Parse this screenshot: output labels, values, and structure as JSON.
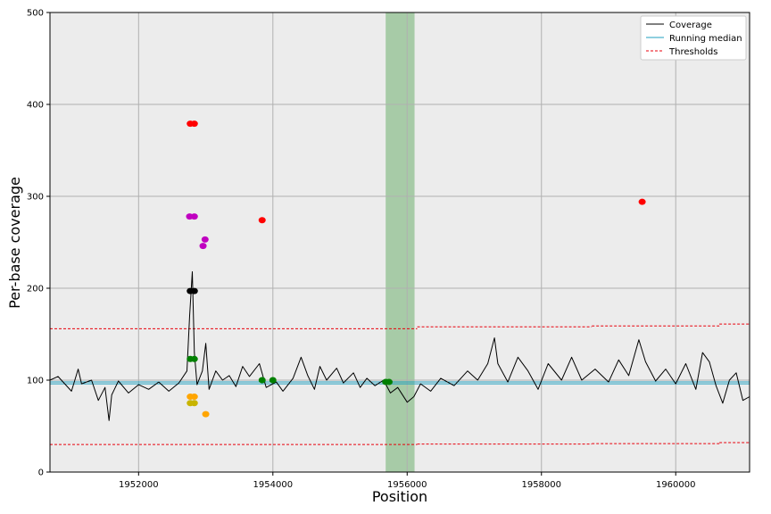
{
  "chart_data": {
    "type": "line",
    "title": "",
    "xlabel": "Position",
    "ylabel": "Per-base coverage",
    "xlim": [
      1950680,
      1961100
    ],
    "ylim": [
      0,
      500
    ],
    "xticks": [
      1952000,
      1954000,
      1956000,
      1958000,
      1960000
    ],
    "yticks": [
      0,
      100,
      200,
      300,
      400,
      500
    ],
    "grid": true,
    "legend_position": "top-right",
    "legend": [
      "Coverage",
      "Running median",
      "Thresholds"
    ],
    "highlight_region": {
      "x": [
        1955680,
        1956110
      ],
      "color": "#a3c9a3"
    },
    "series": [
      {
        "name": "Coverage",
        "color": "#000000",
        "points": [
          [
            1950680,
            100
          ],
          [
            1950800,
            104
          ],
          [
            1951000,
            88
          ],
          [
            1951100,
            112
          ],
          [
            1951150,
            96
          ],
          [
            1951300,
            100
          ],
          [
            1951400,
            78
          ],
          [
            1951500,
            92
          ],
          [
            1951560,
            56
          ],
          [
            1951600,
            84
          ],
          [
            1951700,
            99
          ],
          [
            1951850,
            86
          ],
          [
            1952000,
            95
          ],
          [
            1952150,
            90
          ],
          [
            1952300,
            98
          ],
          [
            1952450,
            88
          ],
          [
            1952600,
            97
          ],
          [
            1952720,
            110
          ],
          [
            1952760,
            170
          ],
          [
            1952800,
            218
          ],
          [
            1952830,
            130
          ],
          [
            1952870,
            95
          ],
          [
            1952950,
            110
          ],
          [
            1953000,
            140
          ],
          [
            1953050,
            90
          ],
          [
            1953150,
            110
          ],
          [
            1953250,
            100
          ],
          [
            1953350,
            105
          ],
          [
            1953450,
            93
          ],
          [
            1953550,
            115
          ],
          [
            1953650,
            104
          ],
          [
            1953800,
            118
          ],
          [
            1953900,
            92
          ],
          [
            1954050,
            98
          ],
          [
            1954150,
            88
          ],
          [
            1954300,
            102
          ],
          [
            1954420,
            125
          ],
          [
            1954520,
            105
          ],
          [
            1954620,
            90
          ],
          [
            1954700,
            115
          ],
          [
            1954800,
            100
          ],
          [
            1954950,
            113
          ],
          [
            1955050,
            97
          ],
          [
            1955200,
            108
          ],
          [
            1955300,
            92
          ],
          [
            1955400,
            102
          ],
          [
            1955520,
            94
          ],
          [
            1955650,
            100
          ],
          [
            1955750,
            86
          ],
          [
            1955860,
            92
          ],
          [
            1956000,
            76
          ],
          [
            1956100,
            82
          ],
          [
            1956200,
            96
          ],
          [
            1956350,
            88
          ],
          [
            1956500,
            102
          ],
          [
            1956700,
            94
          ],
          [
            1956900,
            110
          ],
          [
            1957050,
            100
          ],
          [
            1957200,
            118
          ],
          [
            1957300,
            146
          ],
          [
            1957350,
            118
          ],
          [
            1957500,
            98
          ],
          [
            1957650,
            125
          ],
          [
            1957800,
            110
          ],
          [
            1957950,
            90
          ],
          [
            1958100,
            118
          ],
          [
            1958300,
            100
          ],
          [
            1958450,
            125
          ],
          [
            1958600,
            100
          ],
          [
            1958800,
            112
          ],
          [
            1959000,
            98
          ],
          [
            1959150,
            122
          ],
          [
            1959300,
            105
          ],
          [
            1959450,
            144
          ],
          [
            1959550,
            120
          ],
          [
            1959700,
            99
          ],
          [
            1959850,
            112
          ],
          [
            1960000,
            96
          ],
          [
            1960150,
            118
          ],
          [
            1960300,
            90
          ],
          [
            1960400,
            130
          ],
          [
            1960500,
            120
          ],
          [
            1960600,
            94
          ],
          [
            1960700,
            75
          ],
          [
            1960800,
            100
          ],
          [
            1960900,
            108
          ],
          [
            1961000,
            78
          ],
          [
            1961100,
            82
          ]
        ]
      },
      {
        "name": "Running median",
        "color": "#1f9fbf",
        "segments": [
          {
            "x": [
              1950680,
              1961100
            ],
            "y": [
              96,
              96
            ]
          },
          {
            "x": [
              1950680,
              1961100
            ],
            "y": [
              98,
              98
            ]
          }
        ]
      },
      {
        "name": "Thresholds",
        "color": "#e8000b",
        "segments": [
          {
            "x": [
              1950680,
              1956150
            ],
            "y": [
              156,
              156
            ]
          },
          {
            "x": [
              1956150,
              1958750
            ],
            "y": [
              158,
              158
            ]
          },
          {
            "x": [
              1958750,
              1960650
            ],
            "y": [
              159,
              159
            ]
          },
          {
            "x": [
              1960650,
              1961100
            ],
            "y": [
              161,
              161
            ]
          },
          {
            "x": [
              1950680,
              1956150
            ],
            "y": [
              30,
              30
            ]
          },
          {
            "x": [
              1956150,
              1958750
            ],
            "y": [
              30.5,
              30.5
            ]
          },
          {
            "x": [
              1958750,
              1960650
            ],
            "y": [
              31,
              31
            ]
          },
          {
            "x": [
              1960650,
              1961100
            ],
            "y": [
              32,
              32
            ]
          }
        ]
      }
    ],
    "markers": [
      {
        "x": 1952770,
        "y": 379,
        "color": "#ff0000"
      },
      {
        "x": 1952830,
        "y": 379,
        "color": "#ff0000"
      },
      {
        "x": 1953840,
        "y": 274,
        "color": "#ff0000"
      },
      {
        "x": 1959500,
        "y": 294,
        "color": "#ff0000"
      },
      {
        "x": 1952760,
        "y": 278,
        "color": "#c000c0"
      },
      {
        "x": 1952830,
        "y": 278,
        "color": "#c000c0"
      },
      {
        "x": 1952990,
        "y": 253,
        "color": "#c000c0"
      },
      {
        "x": 1952960,
        "y": 246,
        "color": "#c000c0"
      },
      {
        "x": 1952770,
        "y": 197,
        "color": "#000000"
      },
      {
        "x": 1952830,
        "y": 197,
        "color": "#000000"
      },
      {
        "x": 1952770,
        "y": 123,
        "color": "#008000"
      },
      {
        "x": 1952830,
        "y": 123,
        "color": "#008000"
      },
      {
        "x": 1953840,
        "y": 100,
        "color": "#008000"
      },
      {
        "x": 1954000,
        "y": 100,
        "color": "#008000"
      },
      {
        "x": 1955680,
        "y": 98,
        "color": "#008000"
      },
      {
        "x": 1955730,
        "y": 98,
        "color": "#008000"
      },
      {
        "x": 1952770,
        "y": 82,
        "color": "#ffa500"
      },
      {
        "x": 1952830,
        "y": 82,
        "color": "#ffa500"
      },
      {
        "x": 1952770,
        "y": 75,
        "color": "#c8b400"
      },
      {
        "x": 1952830,
        "y": 75,
        "color": "#c8b400"
      },
      {
        "x": 1953000,
        "y": 63,
        "color": "#ffa500"
      }
    ]
  }
}
